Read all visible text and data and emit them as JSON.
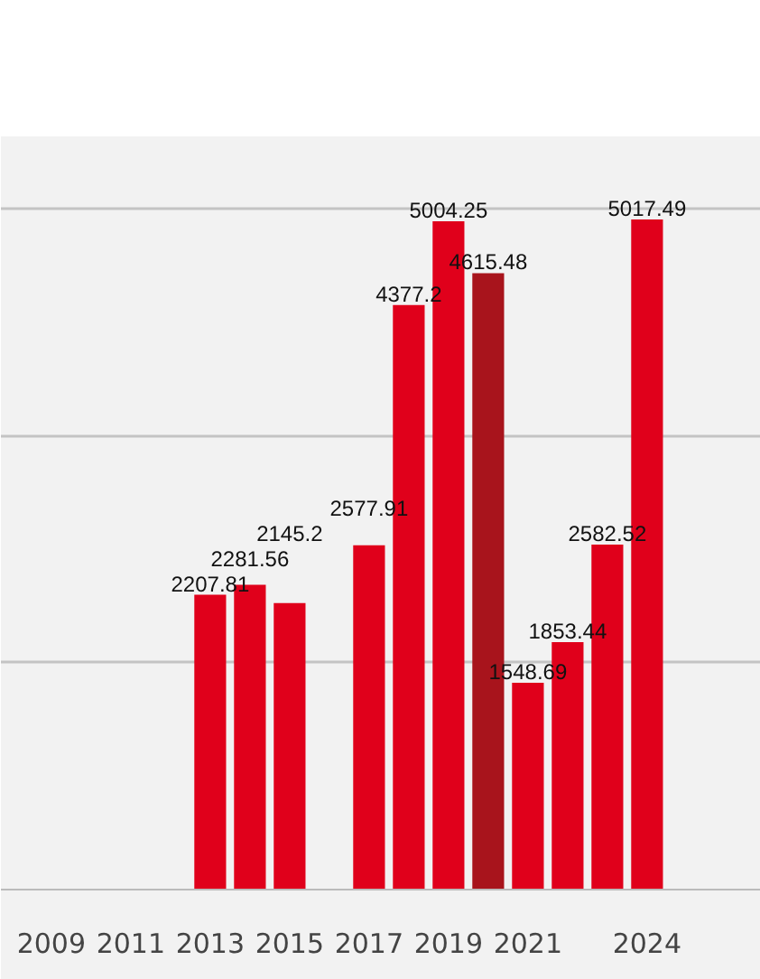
{
  "chart_data": {
    "type": "bar",
    "categories": [
      "2009",
      null,
      "2011",
      null,
      "2013",
      null,
      "2015",
      null,
      "2017",
      null,
      "2019",
      null,
      "2021",
      null,
      null,
      "2024"
    ],
    "values": [
      null,
      null,
      null,
      null,
      2207.81,
      2281.56,
      2145.2,
      null,
      2577.91,
      4377.2,
      5004.25,
      4615.48,
      1548.69,
      1853.44,
      2582.52,
      5017.49
    ],
    "colors": [
      "#e0001b",
      "#e0001b",
      "#e0001b",
      "#e0001b",
      "#e0001b",
      "#e0001b",
      "#e0001b",
      "#e0001b",
      "#e0001b",
      "#e0001b",
      "#e0001b",
      "#a8141c",
      "#e0001b",
      "#e0001b",
      "#e0001b",
      "#e0001b"
    ],
    "data_labels": true,
    "ylim": [
      0,
      5640
    ],
    "yticks": [
      {
        "value": 0,
        "label": null
      },
      {
        "value": 1700,
        "label": null
      },
      {
        "value": 3400,
        "label": null
      },
      {
        "value": 5100,
        "label": null
      }
    ],
    "grid": "y",
    "tick_labels": "x"
  }
}
